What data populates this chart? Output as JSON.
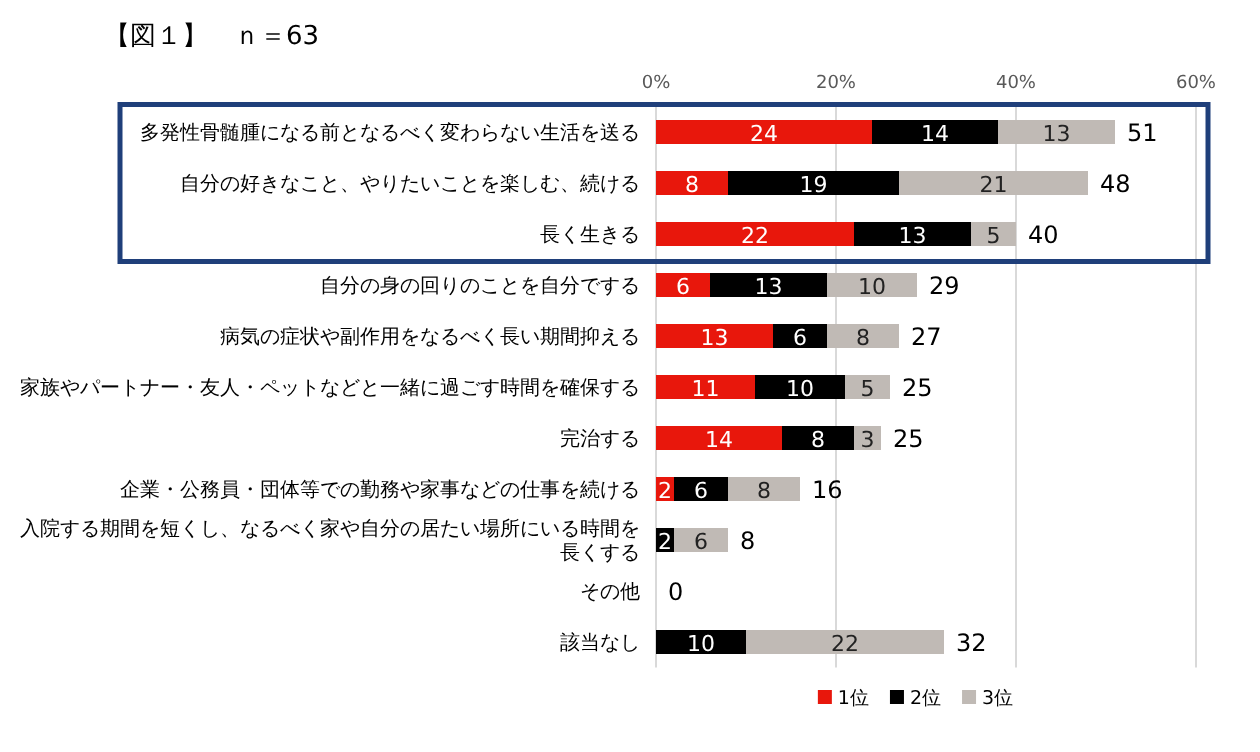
{
  "chart_data": {
    "type": "bar",
    "orientation": "horizontal",
    "stacked": true,
    "title": "【図１】　ｎ＝63",
    "categories": [
      "多発性骨髄腫になる前となるべく変わらない生活を送る",
      "自分の好きなこと、やりたいことを楽しむ、続ける",
      "長く生きる",
      "自分の身の回りのことを自分でする",
      "病気の症状や副作用をなるべく長い期間抑える",
      "家族やパートナー・友人・ペットなどと一緒に過ごす時間を確保する",
      "完治する",
      "企業・公務員・団体等での勤務や家事などの仕事を続ける",
      "入院する期間を短くし、なるべく家や自分の居たい場所にいる時間を長くする",
      "その他",
      "該当なし"
    ],
    "series": [
      {
        "name": "1位",
        "color": "#e8170c",
        "values": [
          24,
          8,
          22,
          6,
          13,
          11,
          14,
          2,
          0,
          0,
          0
        ],
        "value_labels": [
          "24",
          "8",
          "22",
          "6",
          "13",
          "11",
          "14",
          "2",
          null,
          null,
          null
        ]
      },
      {
        "name": "2位",
        "color": "#000000",
        "values": [
          14,
          19,
          13,
          13,
          6,
          10,
          8,
          6,
          2,
          0,
          10
        ],
        "value_labels": [
          "14",
          "19",
          "13",
          "13",
          "6",
          "10",
          "8",
          "6",
          "2",
          null,
          "10"
        ]
      },
      {
        "name": "3位",
        "color": "#c0bab5",
        "values": [
          13,
          21,
          5,
          10,
          8,
          5,
          3,
          8,
          6,
          0,
          22
        ],
        "value_labels": [
          "13",
          "21",
          "5",
          "10",
          "8",
          "5",
          "3",
          "8",
          "6",
          null,
          "22"
        ]
      }
    ],
    "totals": [
      "51",
      "48",
      "40",
      "29",
      "27",
      "25",
      "25",
      "16",
      "8",
      "0",
      "32"
    ],
    "xlim": [
      0,
      60
    ],
    "xticks": [
      {
        "value": 0,
        "label": "0%"
      },
      {
        "value": 20,
        "label": "20%"
      },
      {
        "value": 40,
        "label": "40%"
      },
      {
        "value": 60,
        "label": "60%"
      }
    ],
    "grid": "x",
    "legend": "bottom"
  }
}
